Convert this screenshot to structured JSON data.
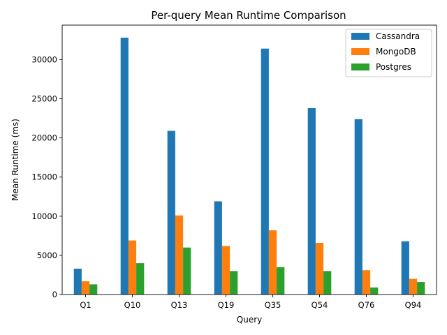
{
  "chart_data": {
    "type": "bar",
    "title": "Per-query Mean Runtime Comparison",
    "xlabel": "Query",
    "ylabel": "Mean Runtime (ms)",
    "categories": [
      "Q1",
      "Q10",
      "Q13",
      "Q19",
      "Q35",
      "Q54",
      "Q76",
      "Q94"
    ],
    "series": [
      {
        "name": "Cassandra",
        "color": "#1f77b4",
        "values": [
          3300,
          32800,
          20900,
          11900,
          31400,
          23800,
          22400,
          6800
        ]
      },
      {
        "name": "MongoDB",
        "color": "#ff7f0e",
        "values": [
          1700,
          6900,
          10100,
          6200,
          8200,
          6600,
          3100,
          2000
        ]
      },
      {
        "name": "Postgres",
        "color": "#2ca02c",
        "values": [
          1300,
          4000,
          6000,
          3000,
          3500,
          3000,
          900,
          1600
        ]
      }
    ],
    "ylim": [
      0,
      34400
    ],
    "yticks": [
      0,
      5000,
      10000,
      15000,
      20000,
      25000,
      30000
    ],
    "grid": false,
    "legend_position": "top-right"
  }
}
